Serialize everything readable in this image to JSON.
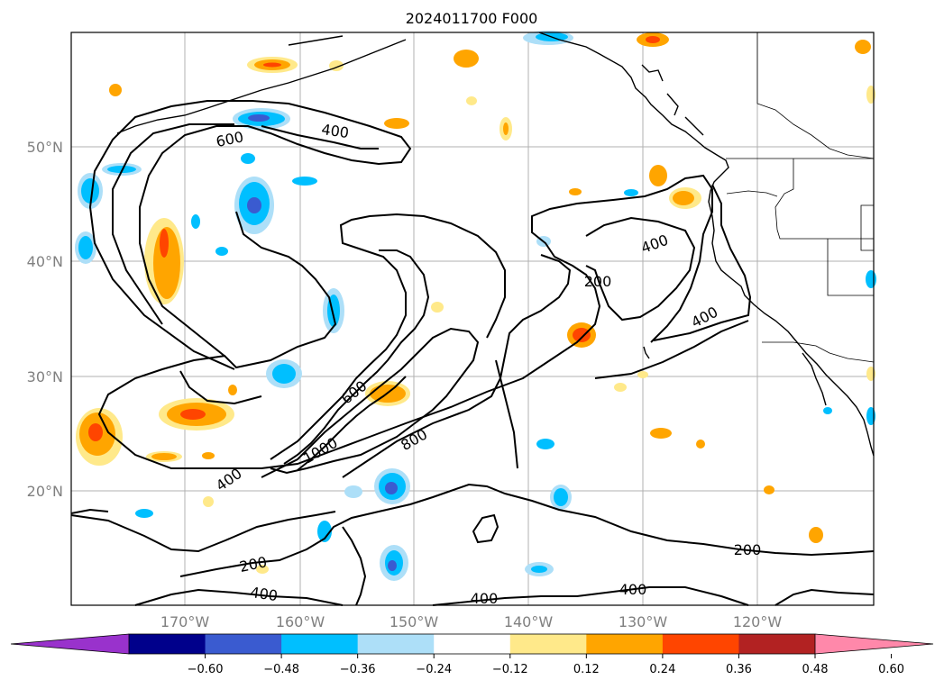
{
  "title": "2024011700 F000",
  "latitude_labels": [
    "50°N",
    "40°N",
    "30°N",
    "20°N"
  ],
  "longitude_labels": [
    "170°W",
    "160°W",
    "150°W",
    "140°W",
    "130°W",
    "120°W"
  ],
  "contour_labels": [
    "600",
    "400",
    "200",
    "400",
    "400",
    "600",
    "1000",
    "800",
    "400",
    "200",
    "400",
    "400",
    "400",
    "200"
  ],
  "colorbar": {
    "tick_labels": [
      "−0.60",
      "−0.48",
      "−0.36",
      "−0.24",
      "−0.12",
      "0.12",
      "0.24",
      "0.36",
      "0.48",
      "0.60"
    ],
    "colors": [
      "#9932CC",
      "#00008B",
      "#3A5BD0",
      "#00BFFF",
      "#ADDFF8",
      "#FFFFFF",
      "#FFE98A",
      "#FFA500",
      "#FF4500",
      "#B22222",
      "#FF88AA"
    ]
  }
}
